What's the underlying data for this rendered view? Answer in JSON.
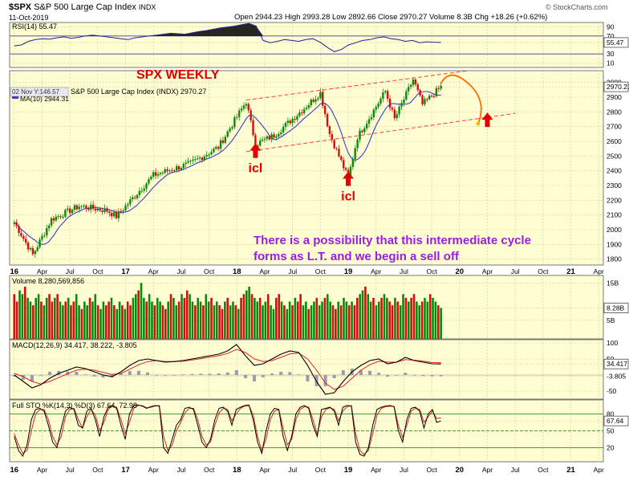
{
  "header": {
    "symbol": "$SPX",
    "name": "S&P 500 Large Cap Index",
    "exchange": "INDX",
    "date": "11-Oct-2019",
    "quote": "Open 2944.23  High 2993.28  Low 2892.66  Close 2970.27  Volume 8.3B  Chg +18.26 (+0.62%)",
    "brand": "© StockCharts.com"
  },
  "colors": {
    "panel_bg": "#fffed2",
    "up": "#0a8a0a",
    "down": "#d01010",
    "ma": "#3b3bd1",
    "channel": "#ff3b3b",
    "annotation_red": "#e00000",
    "annotation_purple": "#9a1ee0",
    "arc": "#ff6a00",
    "grid": "#c9c9a6"
  },
  "annotations": {
    "title": "SPX WEEKLY",
    "icl_label": "icl",
    "note_line1": "There is a possibility that this intermediate cycle",
    "note_line2": "forms as L.T. and we begin a sell off"
  },
  "chart_data": [
    {
      "type": "line",
      "name": "rsi",
      "label": "RSI(14) 55.47",
      "ylim": [
        0,
        100
      ],
      "y_ticks": [
        "90",
        "70",
        "55.47",
        "30",
        "10"
      ],
      "y_tick_values": [
        90,
        70,
        55.47,
        30,
        10
      ],
      "guides": [
        70,
        30
      ],
      "values": [
        48,
        50,
        58,
        62,
        64,
        63,
        66,
        68,
        65,
        67,
        70,
        72,
        70,
        68,
        66,
        64,
        62,
        66,
        68,
        70,
        72,
        74,
        76,
        75,
        74,
        77,
        80,
        82,
        85,
        88,
        90,
        92,
        95,
        98,
        92,
        60,
        55,
        58,
        62,
        60,
        58,
        62,
        64,
        56,
        45,
        35,
        40,
        50,
        55,
        60,
        62,
        66,
        68,
        64,
        62,
        58,
        60,
        55,
        57,
        56,
        55.47
      ]
    },
    {
      "type": "candlestick",
      "name": "price",
      "label": "S&P 500 Large Cap Index (INDX) 2970.27",
      "ma_label": "MA(10) 2944.31",
      "tooltip": "02 Nov Y:146.57",
      "ylim": [
        1760,
        3080
      ],
      "y_ticks": [
        "3000",
        "2970.27",
        "2900",
        "2800",
        "2700",
        "2600",
        "2500",
        "2400",
        "2300",
        "2200",
        "2100",
        "2000",
        "1900",
        "1800"
      ],
      "y_tick_values": [
        3000,
        2970.27,
        2900,
        2800,
        2700,
        2600,
        2500,
        2400,
        2300,
        2200,
        2100,
        2000,
        1900,
        1800
      ],
      "x_ticks": [
        "16",
        "Apr",
        "Jul",
        "Oct",
        "17",
        "Apr",
        "Jul",
        "Oct",
        "18",
        "Apr",
        "Jul",
        "Oct",
        "19",
        "Apr",
        "Jul",
        "Oct",
        "20",
        "Apr",
        "Jul",
        "Oct",
        "21",
        "Apr"
      ],
      "x_tick_months": [
        0,
        3,
        6,
        9,
        12,
        15,
        18,
        21,
        24,
        27,
        30,
        33,
        36,
        39,
        42,
        45,
        48,
        51,
        54,
        57,
        60,
        63
      ],
      "x_start": "2015-12",
      "key_points": [
        {
          "date": "2015-12",
          "value": 2050
        },
        {
          "date": "2016-02",
          "value": 1830
        },
        {
          "date": "2016-04",
          "value": 2070
        },
        {
          "date": "2016-07",
          "value": 2160
        },
        {
          "date": "2016-10",
          "value": 2130
        },
        {
          "date": "2016-11",
          "value": 2090
        },
        {
          "date": "2017-03",
          "value": 2370
        },
        {
          "date": "2017-07",
          "value": 2450
        },
        {
          "date": "2017-10",
          "value": 2560
        },
        {
          "date": "2018-01",
          "value": 2870
        },
        {
          "date": "2018-02",
          "value": 2580
        },
        {
          "date": "2018-04",
          "value": 2640
        },
        {
          "date": "2018-07",
          "value": 2810
        },
        {
          "date": "2018-09",
          "value": 2930
        },
        {
          "date": "2018-10",
          "value": 2650
        },
        {
          "date": "2018-12",
          "value": 2350
        },
        {
          "date": "2019-01",
          "value": 2630
        },
        {
          "date": "2019-04",
          "value": 2940
        },
        {
          "date": "2019-05",
          "value": 2750
        },
        {
          "date": "2019-07",
          "value": 3020
        },
        {
          "date": "2019-08",
          "value": 2850
        },
        {
          "date": "2019-10",
          "value": 2970
        }
      ],
      "channel_upper": [
        {
          "date": "2018-01",
          "value": 2880
        },
        {
          "date": "2020-01",
          "value": 3080
        }
      ],
      "channel_lower": [
        {
          "date": "2018-01",
          "value": 2530
        },
        {
          "date": "2020-06",
          "value": 2790
        }
      ],
      "arc": [
        {
          "date": "2019-10",
          "value": 2995
        },
        {
          "date": "2019-11",
          "value": 3040
        },
        {
          "date": "2020-01",
          "value": 2990
        },
        {
          "date": "2020-02",
          "value": 2720
        }
      ],
      "arrows": [
        {
          "date": "2018-02",
          "value": 2520
        },
        {
          "date": "2018-12",
          "value": 2330
        },
        {
          "date": "2020-03",
          "value": 2730
        }
      ]
    },
    {
      "type": "bar",
      "name": "volume",
      "label": "Volume 8,280,569,856",
      "ylim": [
        0,
        17
      ],
      "unit": "B",
      "y_ticks": [
        "15B",
        "8.28B",
        "5B"
      ],
      "y_tick_values": [
        15,
        8.28,
        5
      ],
      "values": [
        12,
        10,
        13,
        12,
        14,
        11,
        10,
        9,
        11,
        12,
        10,
        9,
        11,
        12,
        10,
        11,
        12,
        10,
        9,
        10,
        11,
        9,
        10,
        12,
        9,
        8,
        10,
        9,
        11,
        10,
        12,
        9,
        8,
        10,
        9,
        10,
        11,
        9,
        8,
        10,
        9,
        8,
        10,
        9,
        11,
        12,
        13,
        15,
        11,
        10,
        12,
        10,
        9,
        11,
        10,
        9,
        8,
        10,
        12,
        11,
        9,
        10,
        12,
        11,
        13,
        12,
        10,
        9,
        11,
        10,
        9,
        12,
        10,
        11,
        9,
        10,
        9,
        8,
        10,
        11,
        9,
        10,
        9,
        8,
        11,
        12,
        13,
        14,
        12,
        11,
        10,
        11,
        9,
        10,
        12,
        9,
        8,
        11,
        12,
        10,
        9,
        8,
        10,
        9,
        11,
        10,
        12,
        9,
        10,
        8,
        9,
        10,
        11,
        9,
        10,
        11,
        12,
        10,
        9,
        8,
        10,
        9,
        11,
        10,
        9,
        10,
        9,
        11,
        12,
        13,
        14,
        12,
        10,
        11,
        9,
        10,
        11,
        12,
        11,
        10,
        9,
        11,
        10,
        9,
        12,
        11,
        10,
        11,
        12,
        10,
        9,
        10,
        11,
        10,
        12,
        11,
        10,
        9,
        8.28
      ]
    },
    {
      "type": "line",
      "name": "macd",
      "label": "MACD(12,26,9) 34.417, 38.222, -3.805",
      "ylim": [
        -75,
        110
      ],
      "y_ticks": [
        "100",
        "50",
        "34.417",
        "-3.805",
        "-50"
      ],
      "y_tick_values": [
        100,
        50,
        34.417,
        -3.805,
        -50
      ],
      "series": [
        {
          "name": "MACD",
          "values": [
            0,
            -20,
            -40,
            -30,
            -10,
            5,
            15,
            25,
            20,
            10,
            0,
            -5,
            10,
            30,
            45,
            50,
            45,
            40,
            42,
            45,
            50,
            55,
            60,
            65,
            75,
            95,
            60,
            30,
            35,
            50,
            65,
            75,
            70,
            30,
            -20,
            -60,
            -55,
            -20,
            10,
            30,
            45,
            50,
            35,
            40,
            55,
            45,
            40,
            35,
            34.417
          ]
        },
        {
          "name": "Signal",
          "values": [
            5,
            -5,
            -20,
            -28,
            -20,
            -8,
            4,
            15,
            18,
            15,
            8,
            2,
            5,
            18,
            32,
            42,
            45,
            42,
            42,
            43,
            47,
            51,
            56,
            60,
            67,
            80,
            70,
            50,
            42,
            45,
            55,
            66,
            68,
            50,
            15,
            -25,
            -45,
            -35,
            -10,
            15,
            32,
            43,
            40,
            40,
            48,
            46,
            43,
            39,
            38.222
          ]
        },
        {
          "name": "Histogram",
          "values": [
            -5,
            -15,
            -20,
            -2,
            10,
            13,
            11,
            10,
            2,
            -5,
            -8,
            -7,
            5,
            12,
            13,
            8,
            0,
            -2,
            0,
            2,
            3,
            4,
            4,
            5,
            8,
            15,
            -10,
            -20,
            -7,
            5,
            10,
            9,
            2,
            -20,
            -35,
            -35,
            -10,
            15,
            20,
            15,
            13,
            7,
            -5,
            0,
            7,
            -1,
            -3,
            -4,
            -3.805
          ]
        }
      ]
    },
    {
      "type": "line",
      "name": "stochastic",
      "label": "Full STO %K(14,3) %D(3) 67.64, 72.98",
      "ylim": [
        -5,
        105
      ],
      "y_ticks": [
        "80",
        "67.64",
        "50",
        "20"
      ],
      "y_tick_values": [
        80,
        67.64,
        50,
        20
      ],
      "guides": [
        80,
        50,
        20
      ],
      "series": [
        {
          "name": "%K",
          "values": [
            40,
            15,
            5,
            25,
            70,
            88,
            90,
            85,
            60,
            30,
            20,
            55,
            85,
            92,
            88,
            60,
            55,
            85,
            90,
            70,
            40,
            75,
            92,
            95,
            90,
            60,
            35,
            80,
            95,
            96,
            94,
            90,
            93,
            95,
            94,
            20,
            10,
            35,
            60,
            70,
            90,
            92,
            88,
            60,
            30,
            20,
            35,
            70,
            90,
            92,
            85,
            60,
            88,
            92,
            95,
            96,
            70,
            30,
            10,
            50,
            80,
            90,
            88,
            40,
            15,
            40,
            80,
            92,
            95,
            90,
            60,
            40,
            88,
            90,
            92,
            85,
            60,
            92,
            95,
            94,
            30,
            8,
            5,
            20,
            60,
            88,
            92,
            94,
            95,
            93,
            50,
            30,
            70,
            90,
            92,
            85,
            55,
            80,
            88,
            65,
            67.64
          ]
        },
        {
          "name": "%D",
          "values": [
            45,
            25,
            10,
            15,
            50,
            80,
            88,
            88,
            70,
            40,
            25,
            40,
            75,
            88,
            90,
            70,
            55,
            75,
            88,
            78,
            50,
            65,
            88,
            94,
            92,
            70,
            45,
            65,
            90,
            95,
            95,
            91,
            92,
            94,
            95,
            40,
            15,
            25,
            50,
            65,
            82,
            90,
            90,
            70,
            40,
            25,
            30,
            60,
            82,
            90,
            88,
            68,
            80,
            90,
            94,
            95,
            78,
            40,
            15,
            35,
            70,
            85,
            88,
            55,
            25,
            35,
            70,
            88,
            93,
            92,
            70,
            45,
            75,
            88,
            91,
            88,
            68,
            85,
            93,
            95,
            45,
            15,
            8,
            15,
            45,
            78,
            90,
            93,
            94,
            93,
            60,
            38,
            60,
            85,
            90,
            88,
            65,
            75,
            85,
            72,
            72.98
          ]
        }
      ]
    }
  ]
}
